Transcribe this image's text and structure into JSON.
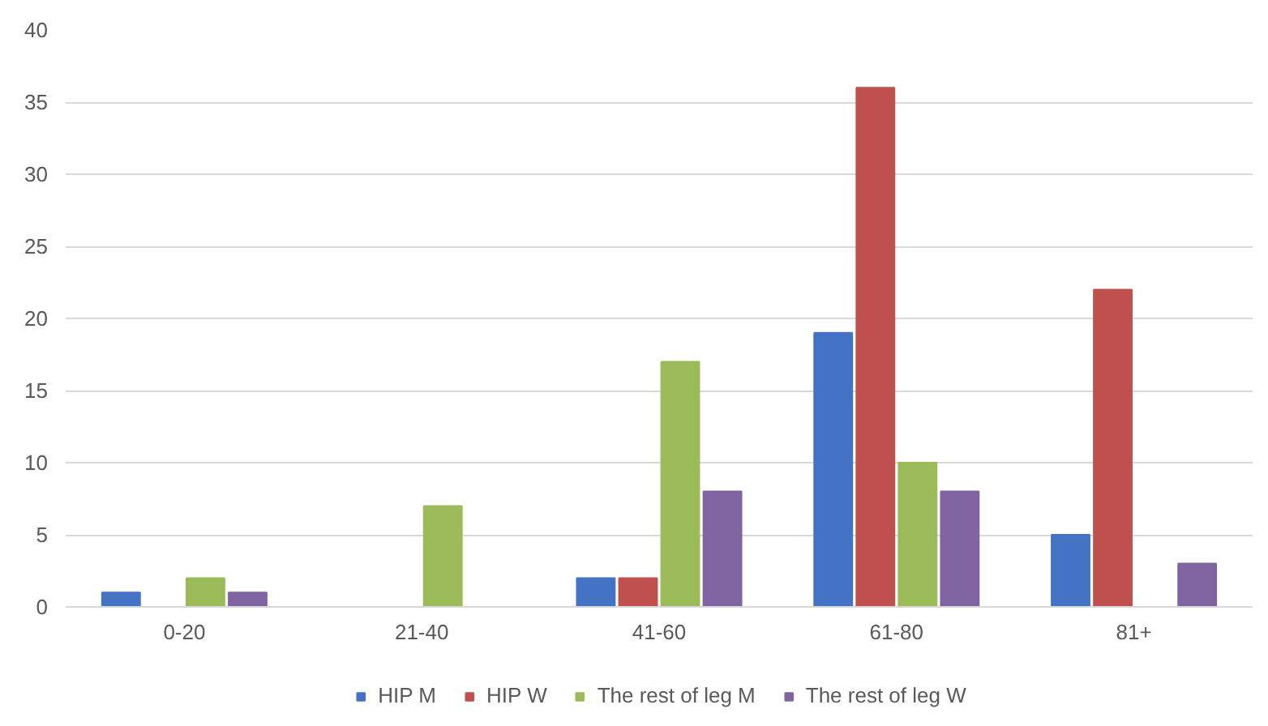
{
  "chart_data": {
    "type": "bar",
    "categories": [
      "0-20",
      "21-40",
      "41-60",
      "61-80",
      "81+"
    ],
    "series": [
      {
        "name": "HIP M",
        "color": "#4472c4",
        "values": [
          1,
          0,
          2,
          19,
          5
        ]
      },
      {
        "name": "HIP W",
        "color": "#c0504d",
        "values": [
          0,
          0,
          2,
          36,
          22
        ]
      },
      {
        "name": "The rest of leg M",
        "color": "#9bbb59",
        "values": [
          2,
          7,
          17,
          10,
          0
        ]
      },
      {
        "name": "The rest of leg W",
        "color": "#8064a2",
        "values": [
          1,
          0,
          8,
          8,
          3
        ]
      }
    ],
    "ylim": [
      0,
      40
    ],
    "yticks": [
      0,
      5,
      10,
      15,
      20,
      25,
      30,
      35,
      40
    ],
    "grid": "y",
    "legend": "bottom"
  }
}
